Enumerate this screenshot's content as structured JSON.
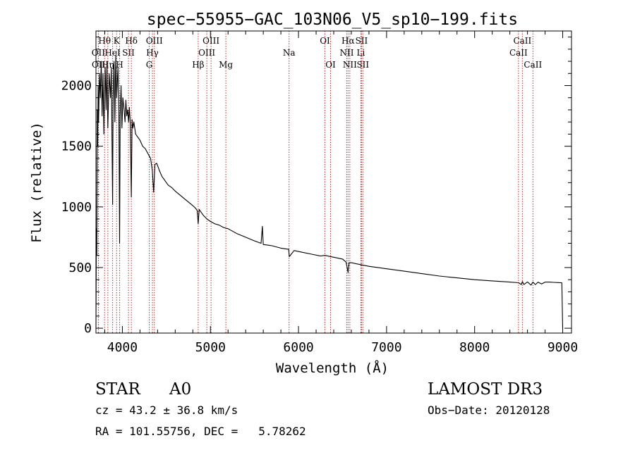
{
  "chart_data": {
    "type": "line",
    "title": "spec−55955−GAC_103N06_V5_sp10−199.fits",
    "xlabel": "Wavelength (Å)",
    "ylabel": "Flux (relative)",
    "xlim": [
      3700,
      9100
    ],
    "ylim": [
      -40,
      2450
    ],
    "x_ticks": [
      4000,
      5000,
      6000,
      7000,
      8000,
      9000
    ],
    "y_ticks": [
      0,
      500,
      1000,
      1500,
      2000
    ],
    "series": [
      {
        "name": "spectrum",
        "x": [
          3700,
          3705,
          3710,
          3715,
          3720,
          3725,
          3730,
          3740,
          3750,
          3760,
          3770,
          3780,
          3790,
          3797,
          3805,
          3815,
          3825,
          3835,
          3850,
          3865,
          3875,
          3880,
          3889,
          3895,
          3905,
          3915,
          3925,
          3935,
          3950,
          3960,
          3968,
          3975,
          3985,
          3995,
          4005,
          4020,
          4030,
          4040,
          4050,
          4060,
          4070,
          4080,
          4090,
          4101,
          4110,
          4120,
          4130,
          4150,
          4170,
          4200,
          4230,
          4260,
          4290,
          4320,
          4340,
          4355,
          4370,
          4390,
          4420,
          4450,
          4480,
          4520,
          4560,
          4600,
          4650,
          4700,
          4750,
          4800,
          4830,
          4850,
          4861,
          4872,
          4890,
          4920,
          4960,
          5000,
          5050,
          5100,
          5150,
          5200,
          5300,
          5400,
          5500,
          5575,
          5590,
          5600,
          5700,
          5800,
          5889,
          5895,
          5950,
          6050,
          6150,
          6250,
          6300,
          6400,
          6500,
          6540,
          6563,
          6575,
          6600,
          6700,
          6800,
          7000,
          7200,
          7400,
          7600,
          7800,
          8000,
          8200,
          8400,
          8500,
          8530,
          8542,
          8560,
          8600,
          8640,
          8662,
          8690,
          8720,
          8760,
          8800,
          8850,
          8900,
          8950,
          8990,
          9000
        ],
        "values": [
          0,
          820,
          600,
          1800,
          1500,
          2000,
          1700,
          2100,
          1900,
          2200,
          1750,
          2100,
          1600,
          1900,
          2150,
          1800,
          2200,
          1650,
          2100,
          1900,
          2150,
          1700,
          1020,
          1900,
          2200,
          1700,
          2250,
          1900,
          2150,
          1800,
          700,
          1750,
          2000,
          1650,
          1900,
          1800,
          1700,
          1880,
          1750,
          1800,
          1700,
          1820,
          1680,
          1080,
          1720,
          1650,
          1700,
          1600,
          1580,
          1550,
          1500,
          1480,
          1440,
          1400,
          1300,
          1120,
          1350,
          1360,
          1300,
          1250,
          1220,
          1180,
          1160,
          1130,
          1100,
          1070,
          1040,
          1010,
          990,
          970,
          860,
          980,
          960,
          930,
          900,
          880,
          860,
          850,
          830,
          820,
          780,
          750,
          720,
          700,
          840,
          690,
          680,
          660,
          650,
          590,
          640,
          625,
          610,
          595,
          600,
          585,
          570,
          545,
          460,
          540,
          540,
          525,
          510,
          490,
          470,
          450,
          430,
          415,
          400,
          390,
          380,
          375,
          360,
          385,
          360,
          382,
          355,
          380,
          360,
          380,
          365,
          380,
          380,
          378,
          376,
          375,
          0
        ]
      }
    ],
    "annotations": [
      {
        "label": "Hθ",
        "x": 3798,
        "row": 1
      },
      {
        "label": "OII",
        "x": 3727,
        "row": 2
      },
      {
        "label": "OII",
        "x": 3729,
        "row": 3
      },
      {
        "label": "HeI",
        "x": 3889,
        "row": 2
      },
      {
        "label": "Hη",
        "x": 3835,
        "row": 3
      },
      {
        "label": "K",
        "x": 3934,
        "row": 1
      },
      {
        "label": "SII",
        "x": 4069,
        "row": 2
      },
      {
        "label": "H",
        "x": 3969,
        "row": 3
      },
      {
        "label": "Hδ",
        "x": 4102,
        "row": 1
      },
      {
        "label": "OIII",
        "x": 4363,
        "row": 1
      },
      {
        "label": "Hγ",
        "x": 4341,
        "row": 2
      },
      {
        "label": "G",
        "x": 4305,
        "row": 3
      },
      {
        "label": "Hβ",
        "x": 4861,
        "row": 3
      },
      {
        "label": "OIII",
        "x": 5007,
        "row": 1
      },
      {
        "label": "OIII",
        "x": 4959,
        "row": 2
      },
      {
        "label": "Mg",
        "x": 5175,
        "row": 3
      },
      {
        "label": "Na",
        "x": 5893,
        "row": 2
      },
      {
        "label": "OI",
        "x": 6300,
        "row": 1
      },
      {
        "label": "OI",
        "x": 6364,
        "row": 3
      },
      {
        "label": "Hα",
        "x": 6563,
        "row": 1
      },
      {
        "label": "NII",
        "x": 6548,
        "row": 2
      },
      {
        "label": "NII",
        "x": 6583,
        "row": 3
      },
      {
        "label": "SII",
        "x": 6716,
        "row": 1
      },
      {
        "label": "Li",
        "x": 6708,
        "row": 2
      },
      {
        "label": "SII",
        "x": 6731,
        "row": 3
      },
      {
        "label": "CaII",
        "x": 8542,
        "row": 1
      },
      {
        "label": "CaII",
        "x": 8498,
        "row": 2
      },
      {
        "label": "CaII",
        "x": 8662,
        "row": 3
      }
    ]
  },
  "footer": {
    "object_class": "STAR",
    "subclass": "A0",
    "survey": "LAMOST DR3",
    "redshift_line": "cz = 43.2 ± 36.8 km/s",
    "obs_date": "Obs−Date: 20120128",
    "coords": "RA = 101.55756, DEC =   5.78262"
  }
}
